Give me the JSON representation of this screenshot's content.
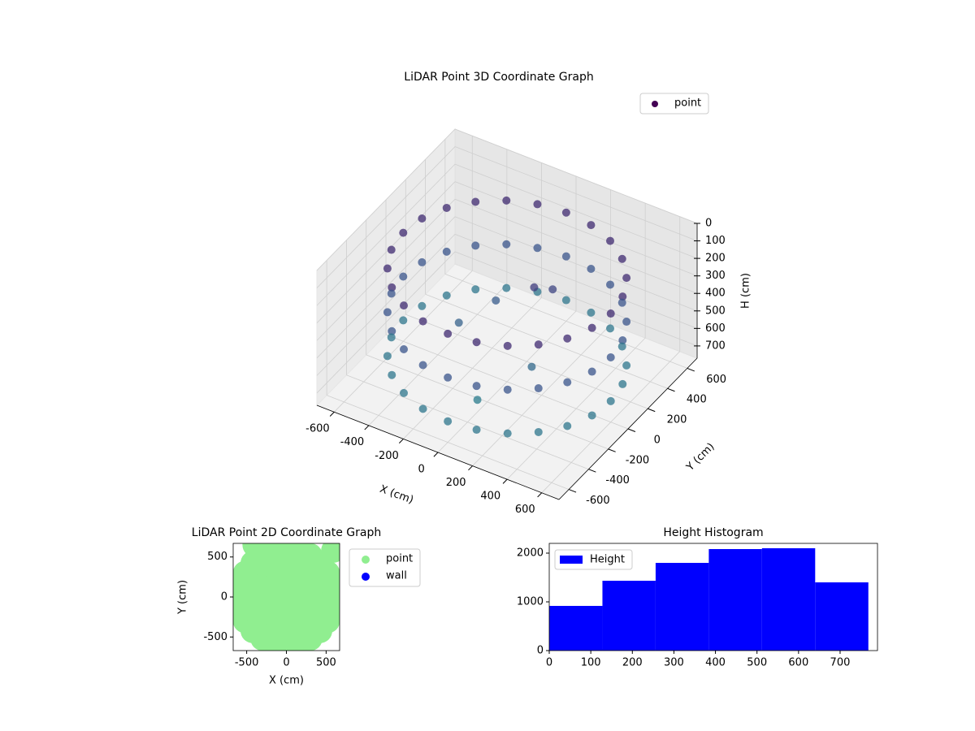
{
  "chart_data": [
    {
      "type": "scatter3d",
      "title": "LiDAR Point 3D Coordinate Graph",
      "xlabel": "X (cm)",
      "ylabel": "Y (cm)",
      "zlabel": "H (cm)",
      "xlim": [
        -700,
        700
      ],
      "ylim": [
        -700,
        700
      ],
      "zlim": [
        0,
        770
      ],
      "zinvert": true,
      "xticks": [
        -600,
        -400,
        -200,
        0,
        200,
        400,
        600
      ],
      "yticks": [
        -600,
        -400,
        -200,
        0,
        200,
        400,
        600
      ],
      "zticks": [
        0,
        100,
        200,
        300,
        400,
        500,
        600,
        700
      ],
      "colormap": "viridis",
      "grid": true,
      "legend": "upper right",
      "series": [
        {
          "name": "point",
          "color": "#440154",
          "x": [
            600,
            580,
            520,
            424,
            300,
            155,
            0,
            -155,
            -300,
            -424,
            -520,
            -580,
            -600,
            -580,
            -520,
            -424,
            -300,
            -155,
            0,
            155,
            300,
            424,
            520,
            580,
            600,
            580,
            520,
            424,
            300,
            155,
            0,
            -155,
            -300,
            -424,
            -520,
            -580,
            -600,
            -580,
            -520,
            -424,
            -300,
            -155,
            0,
            155,
            300,
            424,
            520,
            580,
            600,
            580,
            520,
            424,
            300,
            155,
            0,
            -155,
            -300,
            -424,
            -520,
            -580,
            -600,
            -580,
            -520,
            -424,
            -300,
            -155,
            0,
            155,
            300,
            424,
            520,
            580,
            100,
            150,
            -150,
            200,
            0,
            -250
          ],
          "y": [
            0,
            155,
            300,
            424,
            520,
            580,
            600,
            580,
            520,
            424,
            300,
            155,
            0,
            -155,
            -300,
            -424,
            -520,
            -580,
            -600,
            -580,
            -520,
            -424,
            -300,
            -155,
            0,
            155,
            300,
            424,
            520,
            580,
            600,
            580,
            520,
            424,
            300,
            155,
            0,
            -155,
            -300,
            -424,
            -520,
            -580,
            -600,
            -580,
            -520,
            -424,
            -300,
            -155,
            0,
            155,
            300,
            424,
            520,
            580,
            600,
            580,
            520,
            424,
            300,
            155,
            0,
            -155,
            -300,
            -424,
            -520,
            -580,
            -600,
            -580,
            -520,
            -424,
            -300,
            -155,
            100,
            200,
            150,
            -100,
            -300,
            -50
          ],
          "z": [
            150,
            150,
            150,
            150,
            150,
            150,
            150,
            150,
            150,
            150,
            150,
            150,
            150,
            150,
            150,
            150,
            150,
            150,
            150,
            150,
            150,
            150,
            150,
            150,
            400,
            400,
            400,
            400,
            400,
            400,
            400,
            400,
            400,
            400,
            400,
            400,
            400,
            400,
            400,
            400,
            400,
            400,
            400,
            400,
            400,
            400,
            400,
            400,
            650,
            650,
            650,
            650,
            650,
            650,
            650,
            650,
            650,
            650,
            650,
            650,
            650,
            650,
            650,
            650,
            650,
            650,
            650,
            650,
            650,
            650,
            650,
            650,
            250,
            300,
            450,
            550,
            700,
            500
          ]
        }
      ]
    },
    {
      "type": "scatter",
      "title": "LiDAR Point 2D Coordinate Graph",
      "xlabel": "X (cm)",
      "ylabel": "Y (cm)",
      "xlim": [
        -670,
        670
      ],
      "ylim": [
        -670,
        670
      ],
      "xticks": [
        -500,
        0,
        500
      ],
      "yticks": [
        -500,
        0,
        500
      ],
      "legend": "outside upper right",
      "series": [
        {
          "name": "point",
          "color": "#90ee90",
          "x": [
            -400,
            -200,
            0,
            200,
            400,
            -400,
            -200,
            0,
            200,
            400,
            -400,
            -200,
            0,
            200,
            400,
            -400,
            -200,
            0,
            200,
            400,
            -400,
            -200,
            0,
            200,
            400,
            600,
            580,
            520,
            424,
            300,
            155,
            0,
            -155,
            -300,
            -424,
            -520,
            -580,
            -600,
            -580,
            -520,
            -424,
            -300,
            -155,
            0,
            155,
            300,
            424,
            520,
            580,
            -400,
            590
          ],
          "y": [
            -400,
            -400,
            -400,
            -400,
            -400,
            -200,
            -200,
            -200,
            -200,
            -200,
            0,
            0,
            0,
            0,
            0,
            200,
            200,
            200,
            200,
            200,
            400,
            400,
            400,
            400,
            400,
            0,
            155,
            300,
            424,
            520,
            580,
            600,
            580,
            520,
            424,
            300,
            155,
            0,
            -155,
            -300,
            -424,
            -520,
            -580,
            -600,
            -580,
            -520,
            -424,
            -300,
            -155,
            650,
            580
          ]
        },
        {
          "name": "wall",
          "color": "#0000ff"
        }
      ]
    },
    {
      "type": "histogram",
      "title": "Height Histogram",
      "bins": [
        0,
        128,
        256,
        384,
        512,
        640,
        768
      ],
      "xlim": [
        0,
        790
      ],
      "ylim": [
        0,
        2200
      ],
      "xticks": [
        0,
        100,
        200,
        300,
        400,
        500,
        600,
        700
      ],
      "yticks": [
        0,
        1000,
        2000
      ],
      "legend": "upper left",
      "series": [
        {
          "name": "Height",
          "color": "#0000ff",
          "values": [
            917,
            1433,
            1800,
            2083,
            2100,
            1400
          ]
        }
      ]
    }
  ]
}
